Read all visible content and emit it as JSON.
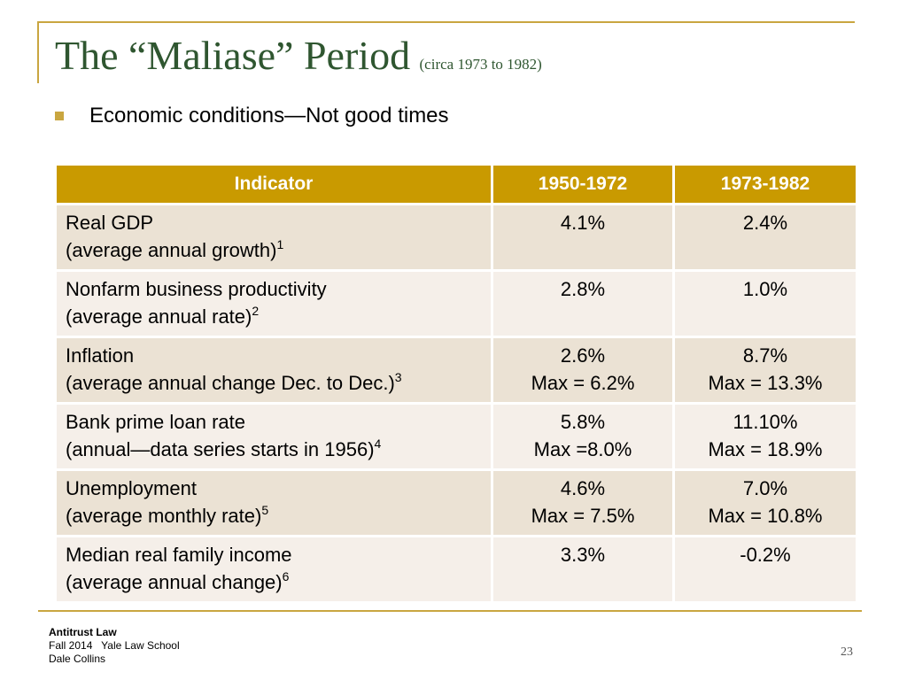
{
  "slide": {
    "title": "The “Maliase” Period",
    "subtitle": "(circa 1973 to 1982)",
    "bullet": "Economic conditions—Not good times",
    "colors": {
      "title": "#2f5630",
      "accent": "#c9a640",
      "header_bg": "#c99a00",
      "row_odd": "#ebe2d4",
      "row_even": "#f5efe9"
    }
  },
  "table": {
    "headers": [
      "Indicator",
      "1950-1972",
      "1973-1982"
    ],
    "rows": [
      {
        "line1": "Real GDP",
        "line2": "(average annual growth)",
        "note": "1",
        "p1": [
          "4.1%"
        ],
        "p2": [
          "2.4%"
        ]
      },
      {
        "line1": "Nonfarm business productivity",
        "line2": "(average annual rate)",
        "note": "2",
        "p1": [
          "2.8%"
        ],
        "p2": [
          "1.0%"
        ]
      },
      {
        "line1": "Inflation",
        "line2": "(average annual change Dec. to Dec.)",
        "note": "3",
        "p1": [
          "2.6%",
          "Max = 6.2%"
        ],
        "p2": [
          "8.7%",
          "Max = 13.3%"
        ]
      },
      {
        "line1": "Bank prime loan rate",
        "line2": "(annual—data series starts in 1956)",
        "note": "4",
        "p1": [
          "5.8%",
          "Max =8.0%"
        ],
        "p2": [
          "11.10%",
          "Max = 18.9%"
        ]
      },
      {
        "line1": "Unemployment",
        "line2": "(average monthly rate)",
        "note": "5",
        "p1": [
          "4.6%",
          "Max = 7.5%"
        ],
        "p2": [
          "7.0%",
          "Max = 10.8%"
        ]
      },
      {
        "line1": "Median real family income",
        "line2": "(average annual change)",
        "note": "6",
        "p1": [
          "3.3%"
        ],
        "p2": [
          "-0.2%"
        ]
      }
    ]
  },
  "footer": {
    "course": "Antitrust Law",
    "term": "Fall 2014   Yale Law School",
    "author": "Dale Collins",
    "page": "23"
  }
}
